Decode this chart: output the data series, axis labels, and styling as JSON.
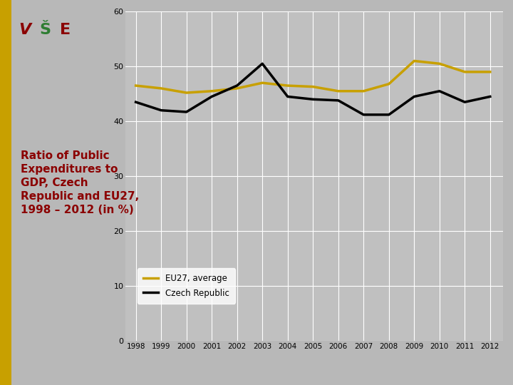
{
  "years": [
    1998,
    1999,
    2000,
    2001,
    2002,
    2003,
    2004,
    2005,
    2006,
    2007,
    2008,
    2009,
    2010,
    2011,
    2012
  ],
  "eu27": [
    46.5,
    46.0,
    45.2,
    45.5,
    46.0,
    47.0,
    46.5,
    46.3,
    45.5,
    45.5,
    46.8,
    51.0,
    50.5,
    49.0,
    49.0
  ],
  "czech": [
    43.5,
    42.0,
    41.7,
    44.5,
    46.5,
    50.5,
    44.5,
    44.0,
    43.8,
    41.2,
    41.2,
    44.5,
    45.5,
    43.5,
    44.5
  ],
  "eu27_color": "#C8A000",
  "czech_color": "#000000",
  "bg_color": "#B8B8B8",
  "plot_bg_color": "#C0C0C0",
  "title": "Ratio of Public\nExpenditures to\nGDP, Czech\nRepublic and EU27,\n1998 – 2012 (in %)",
  "title_color": "#8B0000",
  "title_fontsize": 11,
  "ylim": [
    0,
    60
  ],
  "yticks": [
    0,
    10,
    20,
    30,
    40,
    50,
    60
  ],
  "legend_eu27": "EU27, average",
  "legend_czech": "Czech Republic",
  "left_bar_color": "#C8A000",
  "logo_bg": "#FFFFFF",
  "grid_color": "#FFFFFF"
}
